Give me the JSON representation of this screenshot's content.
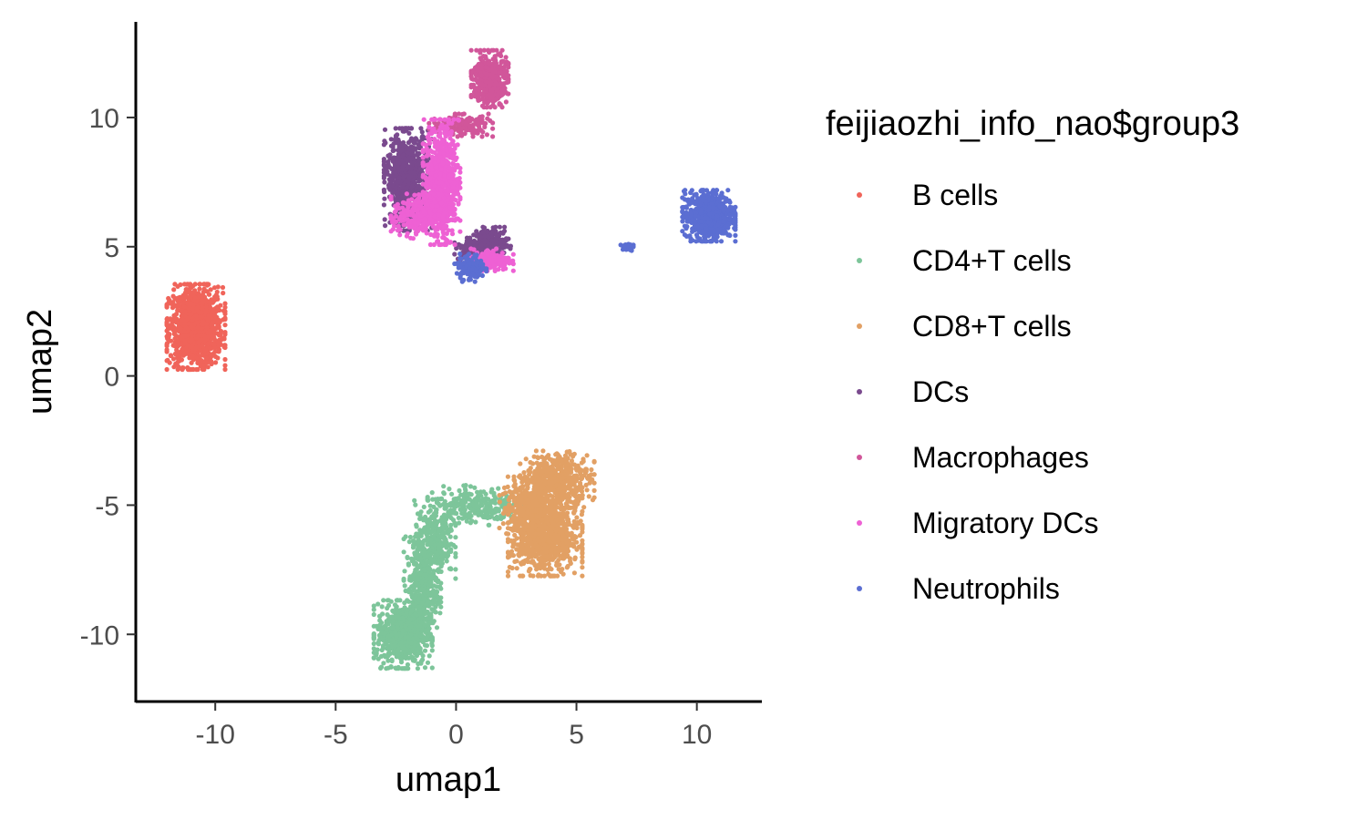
{
  "chart_data": {
    "type": "scatter",
    "xlabel": "umap1",
    "ylabel": "umap2",
    "xlim": [
      -13.3,
      12.7
    ],
    "ylim": [
      -12.6,
      13.7
    ],
    "x_ticks": [
      -10,
      -5,
      0,
      5,
      10
    ],
    "y_ticks": [
      -10,
      -5,
      0,
      5,
      10
    ],
    "x_tick_labels": [
      "-10",
      "-5",
      "0",
      "5",
      "10"
    ],
    "y_tick_labels": [
      "-10",
      "-5",
      "0",
      "5",
      "10"
    ],
    "grid": false,
    "legend": {
      "title": "feijiaozhi_info_nao$group3",
      "placement": "right"
    },
    "series": [
      {
        "name": "B cells",
        "color": "#F0645A",
        "clusters": [
          {
            "cx": -10.8,
            "cy": 1.9,
            "sx": 0.55,
            "sy": 0.75,
            "n": 1100
          }
        ]
      },
      {
        "name": "CD4+T cells",
        "color": "#7DC59A",
        "clusters": [
          {
            "cx": -2.2,
            "cy": -10.0,
            "sx": 0.55,
            "sy": 0.6,
            "n": 700
          },
          {
            "cx": -1.4,
            "cy": -8.2,
            "sx": 0.35,
            "sy": 0.9,
            "n": 350
          },
          {
            "cx": -0.9,
            "cy": -6.3,
            "sx": 0.4,
            "sy": 0.7,
            "n": 300
          },
          {
            "cx": 0.8,
            "cy": -5.0,
            "sx": 0.9,
            "sy": 0.35,
            "n": 250
          }
        ]
      },
      {
        "name": "CD8+T cells",
        "color": "#E2A064",
        "clusters": [
          {
            "cx": 3.7,
            "cy": -6.2,
            "sx": 0.7,
            "sy": 0.7,
            "n": 900
          },
          {
            "cx": 4.2,
            "cy": -4.0,
            "sx": 0.7,
            "sy": 0.5,
            "n": 500
          },
          {
            "cx": 2.9,
            "cy": -5.0,
            "sx": 0.5,
            "sy": 0.5,
            "n": 250
          }
        ]
      },
      {
        "name": "DCs",
        "color": "#7A4A8E",
        "clusters": [
          {
            "cx": -2.0,
            "cy": 7.6,
            "sx": 0.45,
            "sy": 0.9,
            "n": 700
          },
          {
            "cx": 1.5,
            "cy": 5.1,
            "sx": 0.35,
            "sy": 0.3,
            "n": 200
          },
          {
            "cx": 0.6,
            "cy": 4.9,
            "sx": 0.3,
            "sy": 0.2,
            "n": 100
          }
        ]
      },
      {
        "name": "Macrophages",
        "color": "#D1569A",
        "clusters": [
          {
            "cx": 1.4,
            "cy": 11.5,
            "sx": 0.35,
            "sy": 0.5,
            "n": 450
          },
          {
            "cx": 0.2,
            "cy": 9.7,
            "sx": 0.6,
            "sy": 0.2,
            "n": 150
          }
        ]
      },
      {
        "name": "Migratory DCs",
        "color": "#EE61D4",
        "clusters": [
          {
            "cx": -0.6,
            "cy": 7.5,
            "sx": 0.35,
            "sy": 1.1,
            "n": 700
          },
          {
            "cx": -1.6,
            "cy": 6.2,
            "sx": 0.5,
            "sy": 0.4,
            "n": 250
          },
          {
            "cx": 1.5,
            "cy": 4.5,
            "sx": 0.4,
            "sy": 0.2,
            "n": 200
          }
        ]
      },
      {
        "name": "Neutrophils",
        "color": "#5B6ED2",
        "clusters": [
          {
            "cx": 10.5,
            "cy": 6.2,
            "sx": 0.5,
            "sy": 0.45,
            "n": 700
          },
          {
            "cx": 7.1,
            "cy": 5.0,
            "sx": 0.12,
            "sy": 0.08,
            "n": 25
          },
          {
            "cx": 0.6,
            "cy": 4.2,
            "sx": 0.3,
            "sy": 0.25,
            "n": 120
          }
        ]
      }
    ]
  }
}
